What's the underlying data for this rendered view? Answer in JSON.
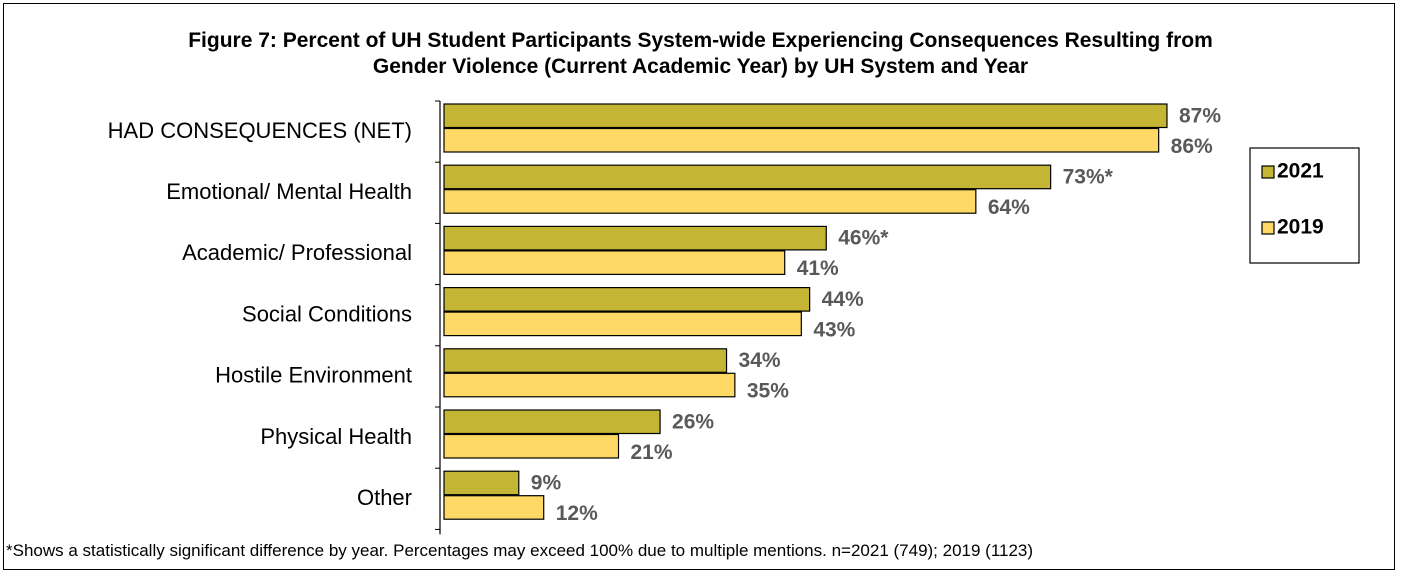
{
  "chart_data": {
    "type": "bar",
    "orientation": "horizontal",
    "title": "Figure 7: Percent of UH Student Participants System-wide Experiencing Consequences Resulting from Gender Violence (Current Academic Year) by UH System and Year",
    "title_lines": [
      "Figure 7: Percent of UH Student Participants System-wide Experiencing Consequences Resulting from",
      "Gender Violence (Current Academic Year) by UH System and Year"
    ],
    "categories": [
      "HAD CONSEQUENCES (NET)",
      "Emotional/ Mental Health",
      "Academic/ Professional",
      "Social Conditions",
      "Hostile Environment",
      "Physical Health",
      "Other"
    ],
    "series": [
      {
        "name": "2021",
        "color": "#c4b534",
        "values": [
          87,
          73,
          46,
          44,
          34,
          26,
          9
        ],
        "labels": [
          "87%",
          "73%*",
          "46%*",
          "44%",
          "34%",
          "26%",
          "9%"
        ]
      },
      {
        "name": "2019",
        "color": "#ffd966",
        "values": [
          86,
          64,
          41,
          43,
          35,
          21,
          12
        ],
        "labels": [
          "86%",
          "64%",
          "41%",
          "43%",
          "35%",
          "21%",
          "12%"
        ]
      }
    ],
    "xlim": [
      0,
      100
    ],
    "grid": false,
    "legend_position": "right",
    "footnote": "*Shows a statistically significant difference by year. Percentages may exceed 100% due to multiple mentions. n=2021 (749); 2019 (1123)"
  }
}
